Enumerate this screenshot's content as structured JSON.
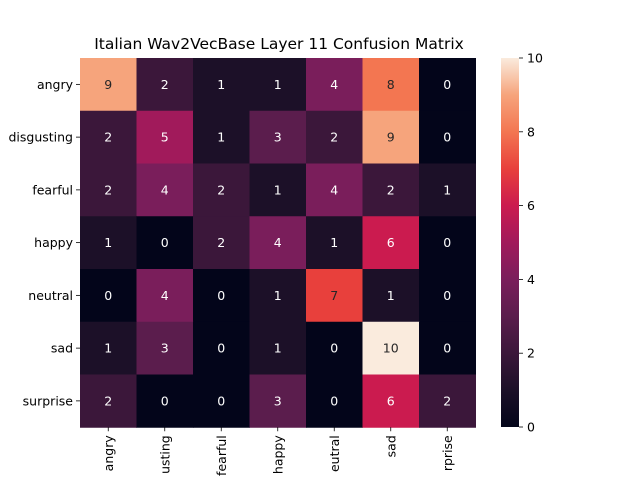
{
  "chart_data": {
    "type": "heatmap",
    "title": "Italian Wav2VecBase Layer 11 Confusion Matrix",
    "row_labels": [
      "angry",
      "disgusting",
      "fearful",
      "happy",
      "neutral",
      "sad",
      "surprise"
    ],
    "col_labels_shown": [
      "angry",
      "usting",
      "fearful",
      "happy",
      "eutral",
      "sad",
      "rprise"
    ],
    "values": [
      [
        9,
        2,
        1,
        1,
        4,
        8,
        0
      ],
      [
        2,
        5,
        1,
        3,
        2,
        9,
        0
      ],
      [
        2,
        4,
        2,
        1,
        4,
        2,
        1
      ],
      [
        1,
        0,
        2,
        4,
        1,
        6,
        0
      ],
      [
        0,
        4,
        0,
        1,
        7,
        1,
        0
      ],
      [
        1,
        3,
        0,
        1,
        0,
        10,
        0
      ],
      [
        2,
        0,
        0,
        3,
        0,
        6,
        2
      ]
    ],
    "vmin": 0,
    "vmax": 10,
    "colormap": "rocket",
    "colorbar_ticks": [
      0,
      2,
      4,
      6,
      8,
      10
    ]
  }
}
